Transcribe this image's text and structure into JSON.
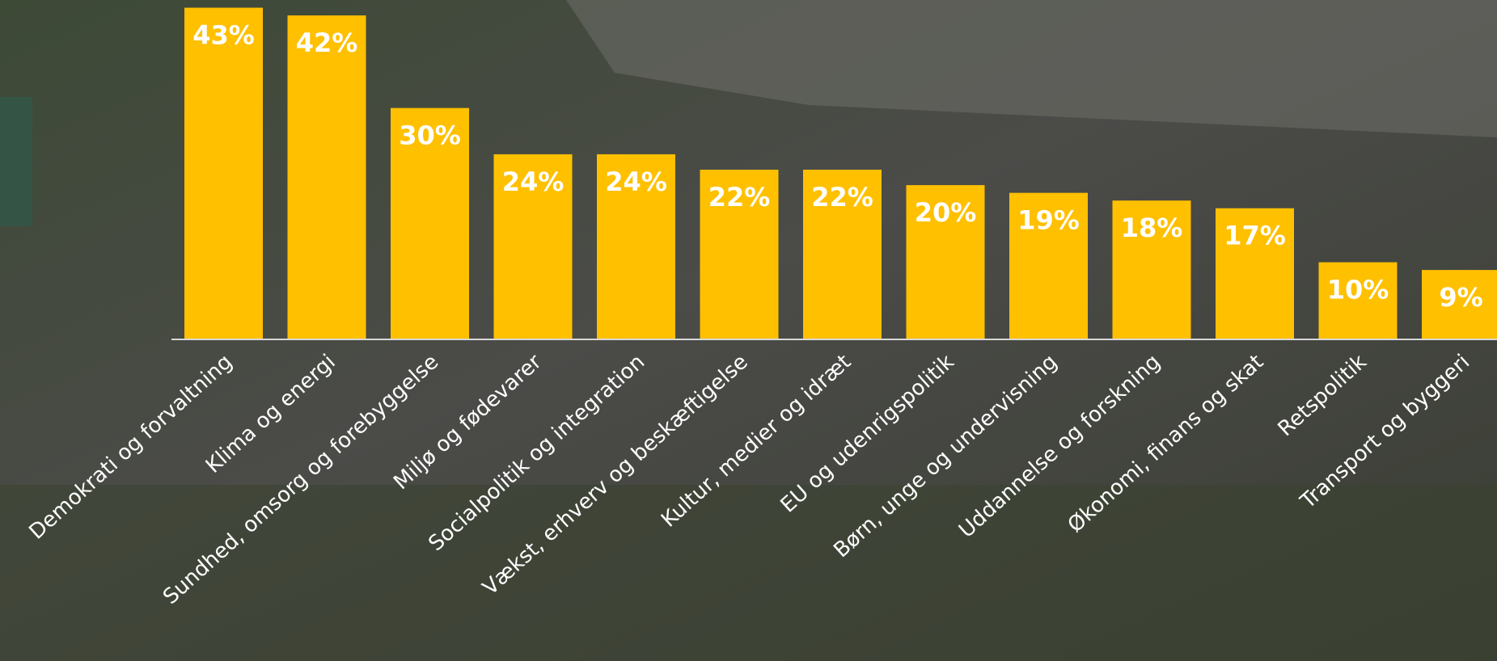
{
  "chart_data": {
    "type": "bar",
    "categories": [
      "Demokrati og forvaltning",
      "Klima og energi",
      "Sundhed, omsorg og forebyggelse",
      "Miljø og fødevarer",
      "Socialpolitik og integration",
      "Vækst, erhverv og beskæftigelse",
      "Kultur, medier og idræt",
      "EU og udenrigspolitik",
      "Børn, unge og undervisning",
      "Uddannelse og forskning",
      "Økonomi, finans og skat",
      "Retspolitik",
      "Transport og byggeri"
    ],
    "values": [
      43,
      42,
      30,
      24,
      24,
      22,
      22,
      20,
      19,
      18,
      17,
      10,
      9
    ],
    "value_labels": [
      "43%",
      "42%",
      "30%",
      "24%",
      "24%",
      "22%",
      "22%",
      "20%",
      "19%",
      "18%",
      "17%",
      "10%",
      "9%"
    ],
    "color": "#ffc000",
    "ylim": [
      0,
      44
    ]
  }
}
